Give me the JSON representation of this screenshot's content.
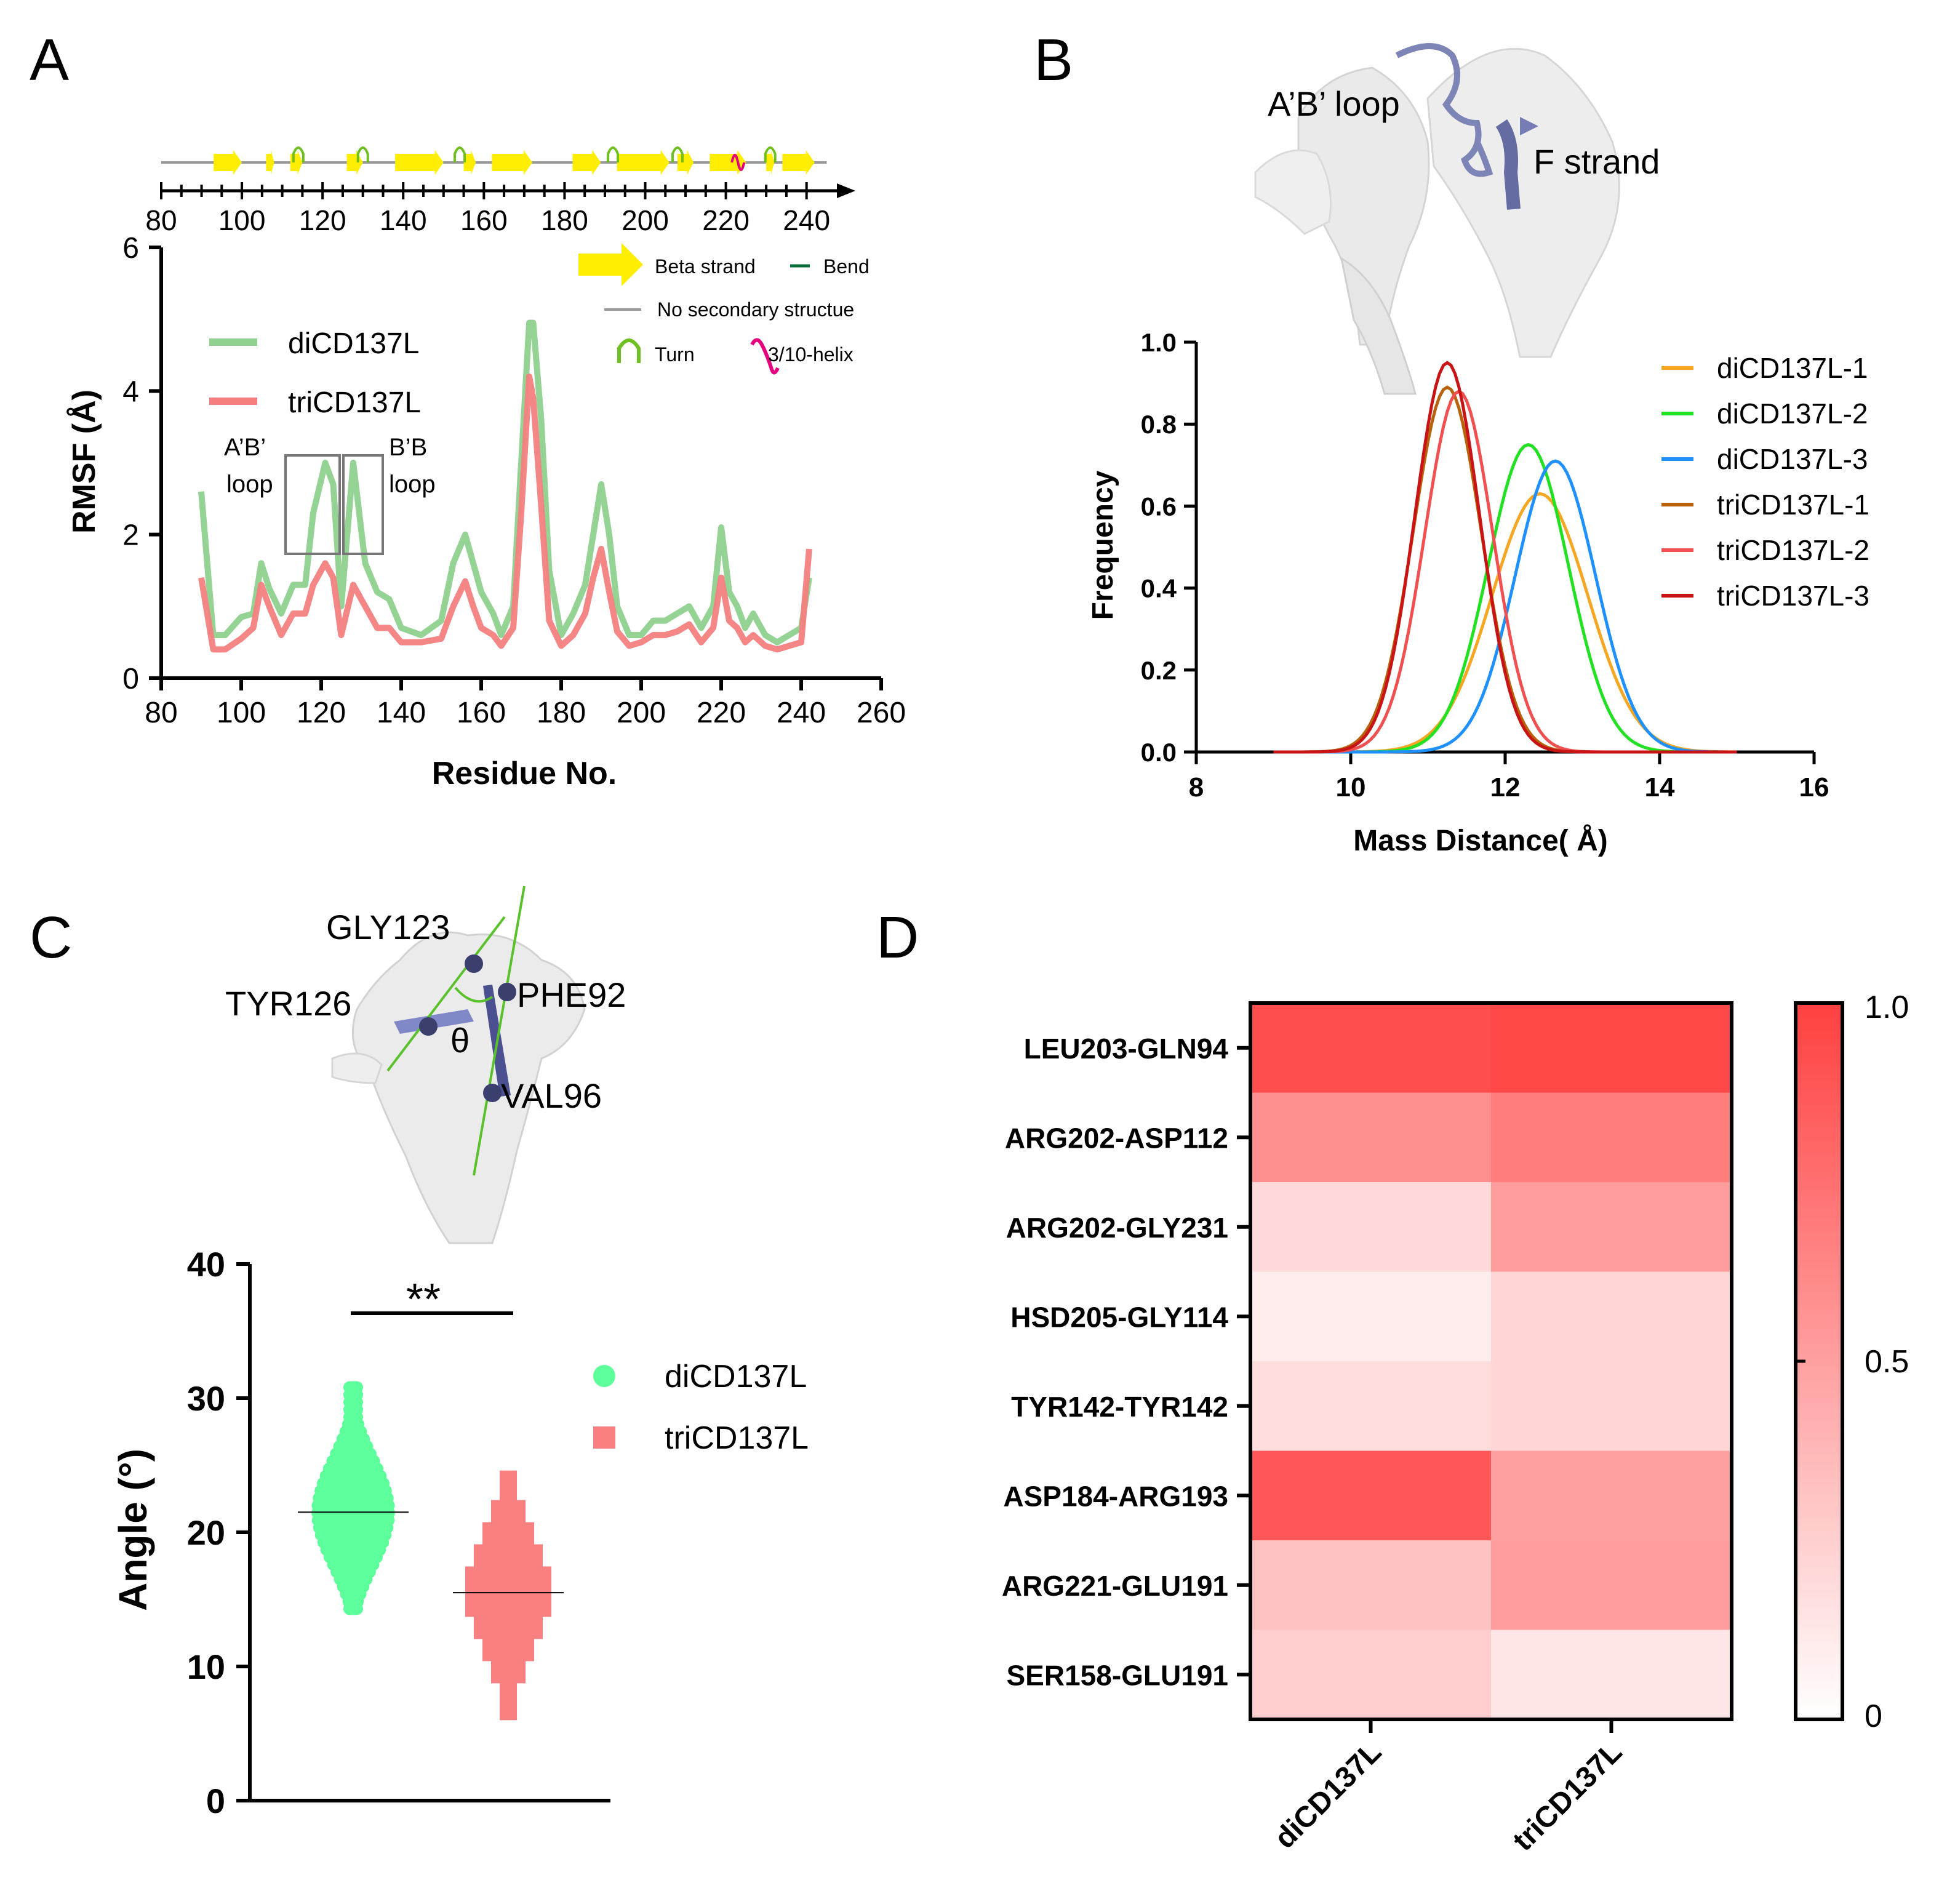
{
  "panels": {
    "A": {
      "label": "A",
      "xlabel": "Residue No.",
      "ylabel": "RMSF (Å)",
      "top_axis_ticks": [
        "80",
        "100",
        "120",
        "140",
        "160",
        "180",
        "200",
        "220",
        "240"
      ],
      "x_ticks": [
        "80",
        "100",
        "120",
        "140",
        "160",
        "180",
        "200",
        "220",
        "240",
        "260"
      ],
      "y_ticks": [
        "0",
        "2",
        "4",
        "6"
      ],
      "legend": [
        {
          "name": "diCD137L",
          "color": "#8fd18f"
        },
        {
          "name": "triCD137L",
          "color": "#f47f7f"
        }
      ],
      "ss_legend": {
        "beta": "Beta strand",
        "bend": "Bend",
        "none": "No secondary structue",
        "turn": "Turn",
        "helix": "3/10-helix"
      },
      "annotations": [
        {
          "line1": "A’B’",
          "line2": "loop"
        },
        {
          "line1": "B’B",
          "line2": "loop"
        }
      ],
      "colors": {
        "beta": "#ffee00",
        "bend": "#0a6e3a",
        "none": "#999999",
        "turn": "#6dc01e",
        "helix": "#e6007e"
      }
    },
    "B": {
      "label": "B",
      "structure_labels": {
        "loop": "A’B’ loop",
        "strand": "F strand"
      },
      "xlabel": "Mass Distance( Å)",
      "ylabel": "Frequency",
      "x_ticks": [
        "8",
        "10",
        "12",
        "14",
        "16"
      ],
      "y_ticks": [
        "0.0",
        "0.2",
        "0.4",
        "0.6",
        "0.8",
        "1.0"
      ]
    },
    "C": {
      "label": "C",
      "structure_labels": {
        "gly": "GLY123",
        "tyr": "TYR126",
        "phe": "PHE92",
        "val": "VAL96",
        "theta": "θ"
      },
      "ylabel": "Angle (°)",
      "y_ticks": [
        "0",
        "10",
        "20",
        "30",
        "40"
      ],
      "significance": "**",
      "legend": [
        {
          "name": "diCD137L",
          "color": "#5cff9a"
        },
        {
          "name": "triCD137L",
          "color": "#f88080"
        }
      ]
    },
    "D": {
      "label": "D",
      "colorbar_ticks": [
        "1.0",
        "0.5",
        "0"
      ]
    }
  },
  "chart_data": [
    {
      "id": "A",
      "type": "line",
      "title": "",
      "xlabel": "Residue No.",
      "ylabel": "RMSF (Å)",
      "xlim": [
        80,
        260
      ],
      "ylim": [
        0,
        6
      ],
      "x": [
        90,
        93,
        96,
        100,
        103,
        105,
        107,
        110,
        113,
        116,
        118,
        121,
        123,
        125,
        128,
        131,
        134,
        137,
        140,
        145,
        150,
        153,
        156,
        158,
        160,
        163,
        165,
        168,
        170,
        172,
        173,
        175,
        177,
        180,
        183,
        186,
        188,
        190,
        192,
        194,
        197,
        200,
        203,
        206,
        209,
        212,
        215,
        218,
        220,
        222,
        224,
        226,
        228,
        231,
        234,
        237,
        240,
        242
      ],
      "series": [
        {
          "name": "diCD137L",
          "color": "#8fd18f",
          "values": [
            2.6,
            0.6,
            0.6,
            0.85,
            0.9,
            1.6,
            1.25,
            0.9,
            1.3,
            1.3,
            2.3,
            3.0,
            2.7,
            1.0,
            3.0,
            1.6,
            1.2,
            1.1,
            0.7,
            0.6,
            0.8,
            1.6,
            2.0,
            1.6,
            1.2,
            0.9,
            0.6,
            1.0,
            3.0,
            4.95,
            4.95,
            3.6,
            1.5,
            0.6,
            0.9,
            1.3,
            2.0,
            2.7,
            2.0,
            1.0,
            0.6,
            0.6,
            0.8,
            0.8,
            0.9,
            1.0,
            0.7,
            1.0,
            2.1,
            1.2,
            1.0,
            0.7,
            0.9,
            0.6,
            0.5,
            0.6,
            0.7,
            1.4
          ]
        },
        {
          "name": "triCD137L",
          "color": "#f47f7f",
          "values": [
            1.4,
            0.4,
            0.4,
            0.55,
            0.7,
            1.3,
            1.0,
            0.6,
            0.9,
            0.9,
            1.3,
            1.6,
            1.4,
            0.6,
            1.3,
            1.0,
            0.7,
            0.7,
            0.5,
            0.5,
            0.55,
            1.0,
            1.35,
            1.0,
            0.7,
            0.6,
            0.45,
            0.7,
            2.3,
            4.2,
            3.9,
            2.4,
            0.8,
            0.45,
            0.6,
            0.9,
            1.4,
            1.8,
            1.2,
            0.65,
            0.45,
            0.5,
            0.6,
            0.6,
            0.65,
            0.75,
            0.5,
            0.7,
            1.4,
            0.8,
            0.7,
            0.5,
            0.6,
            0.45,
            0.4,
            0.45,
            0.5,
            1.8
          ]
        }
      ],
      "secondary_structure": {
        "beta_strands": [
          [
            93,
            100
          ],
          [
            106,
            108
          ],
          [
            112,
            115
          ],
          [
            126,
            130
          ],
          [
            138,
            150
          ],
          [
            155,
            158
          ],
          [
            162,
            172
          ],
          [
            182,
            189
          ],
          [
            193,
            206
          ],
          [
            208,
            212
          ],
          [
            216,
            225
          ],
          [
            230,
            232
          ],
          [
            234,
            242
          ]
        ],
        "turns": [
          114,
          130,
          154,
          192,
          208,
          231
        ],
        "helix": [
          223
        ],
        "coil_range": [
          80,
          245
        ]
      }
    },
    {
      "id": "B",
      "type": "line",
      "xlabel": "Mass Distance( Å)",
      "ylabel": "Frequency",
      "xlim": [
        8,
        16
      ],
      "ylim": [
        0,
        1.0
      ],
      "x_range": [
        9,
        15
      ],
      "series": [
        {
          "name": "diCD137L-1",
          "color": "#f5a623",
          "mean": 12.45,
          "sd": 0.62,
          "peak": 0.63
        },
        {
          "name": "diCD137L-2",
          "color": "#22e022",
          "mean": 12.3,
          "sd": 0.52,
          "peak": 0.75
        },
        {
          "name": "diCD137L-3",
          "color": "#1e90ff",
          "mean": 12.65,
          "sd": 0.52,
          "peak": 0.71
        },
        {
          "name": "triCD137L-1",
          "color": "#b8620e",
          "mean": 11.25,
          "sd": 0.44,
          "peak": 0.89
        },
        {
          "name": "triCD137L-2",
          "color": "#f05050",
          "mean": 11.4,
          "sd": 0.44,
          "peak": 0.88
        },
        {
          "name": "triCD137L-3",
          "color": "#c81414",
          "mean": 11.25,
          "sd": 0.42,
          "peak": 0.95
        }
      ]
    },
    {
      "id": "C",
      "type": "scatter",
      "ylabel": "Angle (°)",
      "ylim": [
        0,
        40
      ],
      "series": [
        {
          "name": "diCD137L",
          "color": "#5cff9a",
          "min": 14.3,
          "max": 31.2,
          "median": 21.5
        },
        {
          "name": "triCD137L",
          "color": "#f88080",
          "min": 6.5,
          "max": 24.2,
          "median": 15.5
        }
      ]
    },
    {
      "id": "D",
      "type": "heatmap",
      "columns": [
        "diCD137L",
        "triCD137L"
      ],
      "rows": [
        "LEU203-GLN94",
        "ARG202-ASP112",
        "ARG202-GLY231",
        "HSD205-GLY114",
        "TYR142-TYR142",
        "ASP184-ARG193",
        "ARG221-GLU191",
        "SER158-GLU191"
      ],
      "values": [
        [
          0.93,
          0.96
        ],
        [
          0.58,
          0.68
        ],
        [
          0.2,
          0.52
        ],
        [
          0.1,
          0.22
        ],
        [
          0.18,
          0.22
        ],
        [
          0.88,
          0.5
        ],
        [
          0.32,
          0.52
        ],
        [
          0.26,
          0.13
        ]
      ],
      "vmin": 0,
      "vmax": 1
    }
  ]
}
